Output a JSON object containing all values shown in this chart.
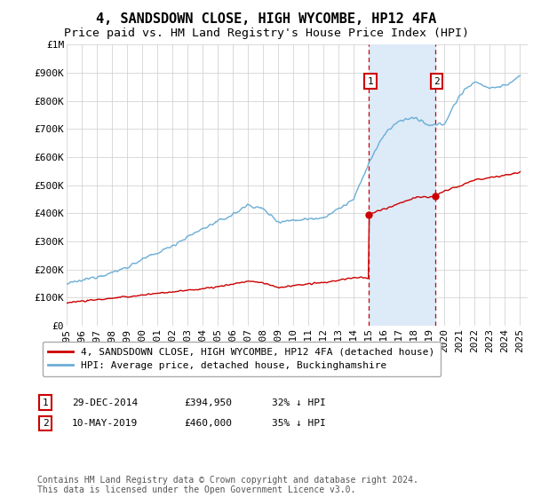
{
  "title": "4, SANDSDOWN CLOSE, HIGH WYCOMBE, HP12 4FA",
  "subtitle": "Price paid vs. HM Land Registry's House Price Index (HPI)",
  "ylim": [
    0,
    1000000
  ],
  "yticks": [
    0,
    100000,
    200000,
    300000,
    400000,
    500000,
    600000,
    700000,
    800000,
    900000,
    1000000
  ],
  "ytick_labels": [
    "£0",
    "£100K",
    "£200K",
    "£300K",
    "£400K",
    "£500K",
    "£600K",
    "£700K",
    "£800K",
    "£900K",
    "£1M"
  ],
  "hpi_color": "#6baed6",
  "price_color": "#cc0000",
  "shade_color": "#ddeaf7",
  "vline_color": "#cc0000",
  "background_color": "#ffffff",
  "grid_color": "#cccccc",
  "point1_year": 2014.99,
  "point1_price": 394950,
  "point2_year": 2019.36,
  "point2_price": 460000,
  "legend_label_price": "4, SANDSDOWN CLOSE, HIGH WYCOMBE, HP12 4FA (detached house)",
  "legend_label_hpi": "HPI: Average price, detached house, Buckinghamshire",
  "table_rows": [
    {
      "num": "1",
      "date": "29-DEC-2014",
      "price": "£394,950",
      "pct": "32% ↓ HPI"
    },
    {
      "num": "2",
      "date": "10-MAY-2019",
      "price": "£460,000",
      "pct": "35% ↓ HPI"
    }
  ],
  "footer": "Contains HM Land Registry data © Crown copyright and database right 2024.\nThis data is licensed under the Open Government Licence v3.0.",
  "title_fontsize": 11,
  "subtitle_fontsize": 9.5,
  "tick_fontsize": 8,
  "legend_fontsize": 8,
  "table_fontsize": 8,
  "footer_fontsize": 7,
  "hpi_nodes_x": [
    1995,
    1996,
    1997,
    1998,
    1999,
    2000,
    2001,
    2002,
    2003,
    2004,
    2005,
    2006,
    2007,
    2008,
    2009,
    2010,
    2011,
    2012,
    2013,
    2014,
    2015,
    2016,
    2017,
    2018,
    2019,
    2020,
    2021,
    2022,
    2023,
    2024,
    2025
  ],
  "hpi_nodes_y": [
    148000,
    160000,
    175000,
    188000,
    208000,
    235000,
    258000,
    285000,
    315000,
    345000,
    370000,
    395000,
    430000,
    415000,
    370000,
    375000,
    380000,
    385000,
    415000,
    450000,
    580000,
    680000,
    730000,
    740000,
    710000,
    720000,
    820000,
    870000,
    845000,
    855000,
    885000
  ],
  "price_nodes_x": [
    1995,
    1997,
    1999,
    2001,
    2003,
    2005,
    2007,
    2008,
    2009,
    2010,
    2011,
    2012,
    2013,
    2014,
    2014.98,
    2015,
    2016,
    2017,
    2018,
    2019.35,
    2019.37,
    2020,
    2021,
    2022,
    2023,
    2024,
    2025
  ],
  "price_nodes_y": [
    82000,
    92000,
    102000,
    115000,
    125000,
    138000,
    158000,
    152000,
    135000,
    142000,
    148000,
    152000,
    162000,
    170000,
    170000,
    394950,
    415000,
    435000,
    455000,
    460000,
    460000,
    478000,
    498000,
    518000,
    528000,
    535000,
    545000
  ]
}
